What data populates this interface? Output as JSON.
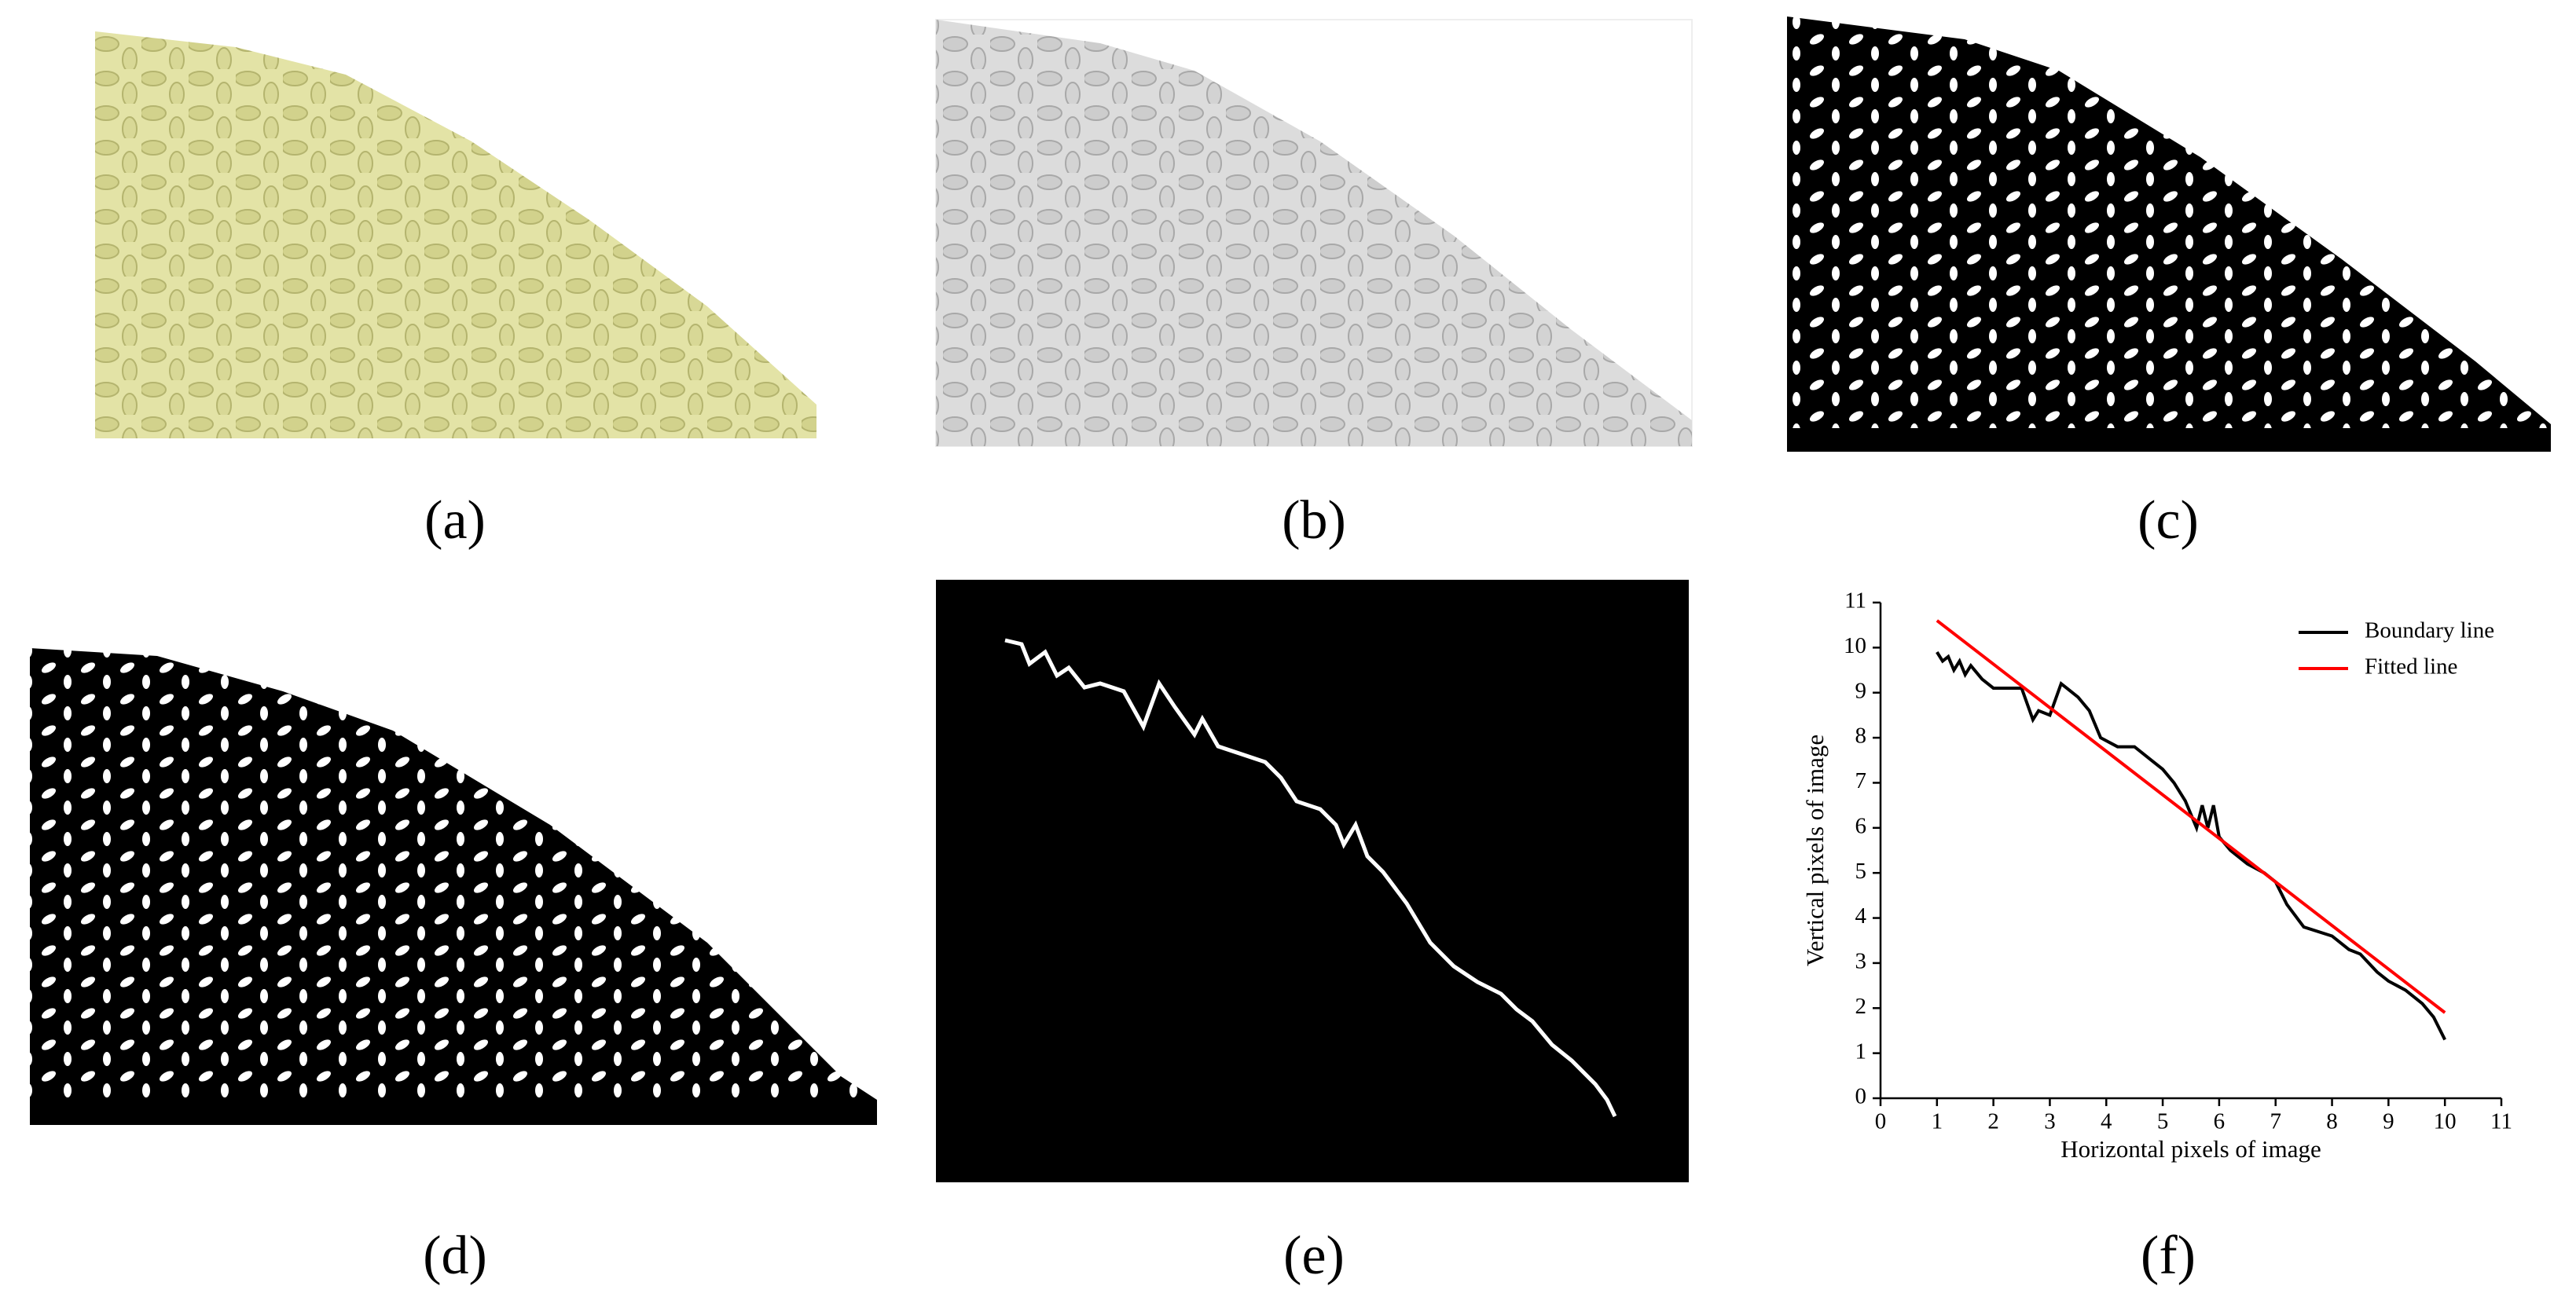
{
  "panels": [
    "(a)",
    "(b)",
    "(c)",
    "(d)",
    "(e)",
    "(f)"
  ],
  "chart_data": {
    "type": "line",
    "x_label": "Horizontal pixels of image",
    "y_label": "Vertical pixels of image",
    "xlim": [
      0,
      11
    ],
    "ylim": [
      0,
      11
    ],
    "xticks": [
      0,
      1,
      2,
      3,
      4,
      5,
      6,
      7,
      8,
      9,
      10,
      11
    ],
    "yticks": [
      0,
      1,
      2,
      3,
      4,
      5,
      6,
      7,
      8,
      9,
      10,
      11
    ],
    "legend": "upper right",
    "series": [
      {
        "name": "Boundary line",
        "color": "#000000",
        "x": [
          1,
          1.1,
          1.2,
          1.3,
          1.4,
          1.5,
          1.6,
          1.8,
          2,
          2.2,
          2.5,
          2.7,
          2.8,
          3,
          3.2,
          3.3,
          3.5,
          3.7,
          3.9,
          4.2,
          4.5,
          4.8,
          5,
          5.2,
          5.4,
          5.6,
          5.7,
          5.8,
          5.9,
          6,
          6.2,
          6.5,
          6.8,
          7,
          7.2,
          7.5,
          8,
          8.3,
          8.5,
          8.8,
          9,
          9.3,
          9.6,
          9.8,
          10
        ],
        "values": [
          9.9,
          9.7,
          9.8,
          9.5,
          9.7,
          9.4,
          9.6,
          9.3,
          9.1,
          9.1,
          9.1,
          8.4,
          8.6,
          8.5,
          9.2,
          9.1,
          8.9,
          8.6,
          8.0,
          7.8,
          7.8,
          7.5,
          7.3,
          7.0,
          6.6,
          6.0,
          6.5,
          6.0,
          6.5,
          5.8,
          5.5,
          5.2,
          5.0,
          4.8,
          4.3,
          3.8,
          3.6,
          3.3,
          3.2,
          2.8,
          2.6,
          2.4,
          2.1,
          1.8,
          1.3
        ]
      },
      {
        "name": "Fitted line",
        "color": "#ff0000",
        "x": [
          1,
          10
        ],
        "values": [
          10.6,
          1.9
        ]
      }
    ]
  }
}
